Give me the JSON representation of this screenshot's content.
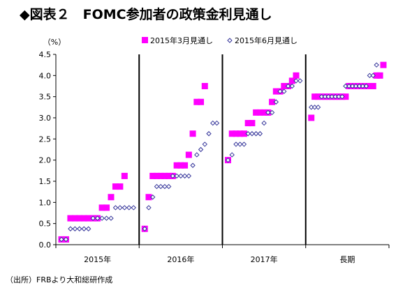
{
  "title": "◆図表２　FOMC参加者の政策金利見通し",
  "source": "（出所）FRBより大和総研作成",
  "chart_data": {
    "type": "scatter",
    "ylabel": "（%）",
    "ylim": [
      0,
      4.5
    ],
    "yticks": [
      "0.0",
      "0.5",
      "1.0",
      "1.5",
      "2.0",
      "2.5",
      "3.0",
      "3.5",
      "4.0",
      "4.5"
    ],
    "categories": [
      "2015年",
      "2016年",
      "2017年",
      "長期"
    ],
    "legend_position": "top-right",
    "grid": false,
    "colors": {
      "march": "#ff00ff",
      "june": "#333399"
    },
    "series": [
      {
        "name": "2015年3月見通し",
        "marker": "square",
        "groups": [
          [
            0.125,
            0.125,
            0.625,
            0.625,
            0.625,
            0.625,
            0.625,
            0.625,
            0.625,
            0.875,
            0.875,
            1.125,
            1.375,
            1.375,
            1.625
          ],
          [
            0.375,
            1.125,
            1.625,
            1.625,
            1.625,
            1.625,
            1.625,
            1.625,
            1.875,
            1.875,
            1.875,
            2.125,
            2.625,
            3.375,
            3.375,
            3.75
          ],
          [
            2.0,
            2.625,
            2.625,
            2.625,
            2.625,
            2.875,
            2.875,
            3.125,
            3.125,
            3.125,
            3.125,
            3.375,
            3.625,
            3.625,
            3.75,
            3.75,
            3.875,
            4.0
          ],
          [
            3.0,
            3.5,
            3.5,
            3.5,
            3.5,
            3.5,
            3.5,
            3.5,
            3.5,
            3.5,
            3.5,
            3.75,
            3.75,
            3.75,
            3.75,
            3.75,
            3.75,
            3.75,
            3.75,
            4.0,
            4.0,
            4.25
          ]
        ]
      },
      {
        "name": "2015年6月見通し",
        "marker": "diamond",
        "groups": [
          [
            0.125,
            0.125,
            0.375,
            0.375,
            0.375,
            0.375,
            0.375,
            0.625,
            0.625,
            0.625,
            0.625,
            0.625,
            0.875,
            0.875,
            0.875,
            0.875,
            0.875
          ],
          [
            0.375,
            0.875,
            1.125,
            1.375,
            1.375,
            1.375,
            1.375,
            1.625,
            1.625,
            1.625,
            1.625,
            1.625,
            1.875,
            2.125,
            2.25,
            2.375,
            2.625,
            2.875,
            2.875
          ],
          [
            2.0,
            2.125,
            2.375,
            2.375,
            2.375,
            2.625,
            2.625,
            2.625,
            2.625,
            2.875,
            3.125,
            3.125,
            3.375,
            3.625,
            3.625,
            3.75,
            3.75,
            3.875,
            3.875
          ],
          [
            3.25,
            3.25,
            3.25,
            3.5,
            3.5,
            3.5,
            3.5,
            3.5,
            3.5,
            3.5,
            3.75,
            3.75,
            3.75,
            3.75,
            3.75,
            3.75,
            3.75,
            4.0,
            4.0,
            4.25
          ]
        ]
      }
    ]
  }
}
